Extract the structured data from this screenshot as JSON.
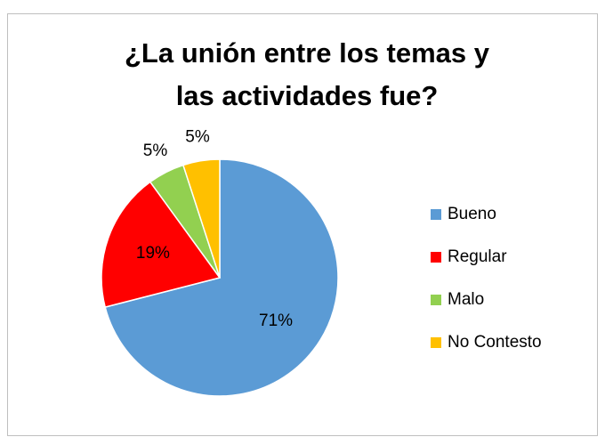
{
  "chart_data": {
    "type": "pie",
    "title": "¿La unión entre los temas y las actividades fue?",
    "categories": [
      "Bueno",
      "Regular",
      "Malo",
      "No Contesto"
    ],
    "values": [
      71,
      19,
      5,
      5
    ],
    "value_labels": [
      "71%",
      "19%",
      "5%",
      "5%"
    ],
    "colors": [
      "#5b9bd5",
      "#ff0000",
      "#92d050",
      "#ffc000"
    ],
    "legend": "right"
  }
}
